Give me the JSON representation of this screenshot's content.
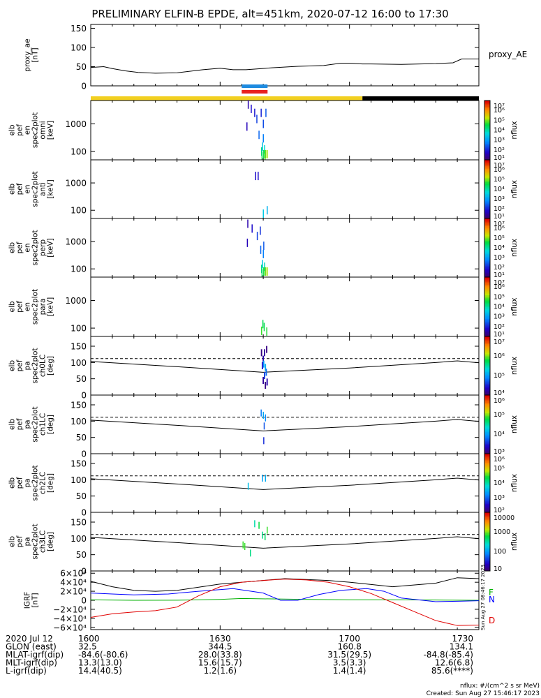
{
  "title": "PRELIMINARY ELFIN-B EPDE, alt=451km, 2020-07-12 16:00 to 17:30",
  "footer": {
    "units": "nflux: #/(cm^2 s sr MeV)",
    "created": "Created: Sun Aug 27 15:46:17 2023",
    "stamp": "Sun Aug 27 08:46:17 2023"
  },
  "time_axis": {
    "minutes": [
      0,
      30,
      60,
      90
    ],
    "range_minutes": [
      0,
      90
    ],
    "labels": [
      "1600",
      "1630",
      "1700",
      "1730"
    ]
  },
  "ephemeris": [
    {
      "label": "2020 Jul 12",
      "values": [
        "1600",
        "1630",
        "1700",
        "1730"
      ]
    },
    {
      "label": "GLON (east)",
      "values": [
        "32.5",
        "344.5",
        "160.8",
        "134.1"
      ]
    },
    {
      "label": "MLAT-igrf(dip)",
      "values": [
        "-84.6(-80.6)",
        "28.0(33.8)",
        "31.5(29.5)",
        "-84.8(-85.4)"
      ]
    },
    {
      "label": "MLT-igrf(dip)",
      "values": [
        "13.3(13.0)",
        "15.6(15.7)",
        "3.5(3.3)",
        "12.6(6.8)"
      ]
    },
    {
      "label": "L-igrf(dip)",
      "values": [
        "14.4(40.5)",
        "1.2(1.6)",
        "1.4(1.4)",
        "85.6(****)"
      ]
    }
  ],
  "chart_data": [
    {
      "id": "proxy_ae",
      "type": "line",
      "ylabel": [
        "proxy_ae",
        "[nT]"
      ],
      "legend": "proxy_AE",
      "yticks": [
        "0",
        "50",
        "100",
        "150"
      ],
      "ylim": [
        0,
        160
      ],
      "x": [
        0,
        3,
        5,
        8,
        11,
        15,
        20,
        26,
        30,
        33,
        36,
        42,
        48,
        54,
        58,
        60,
        63,
        65,
        72,
        80,
        84,
        86,
        90
      ],
      "y": [
        48,
        50,
        45,
        39,
        35,
        33,
        34,
        42,
        46,
        42,
        42,
        47,
        51,
        53,
        59,
        59,
        57,
        57,
        56,
        58,
        60,
        70,
        70
      ]
    },
    {
      "id": "status_bar",
      "type": "bar",
      "segments": [
        {
          "start": 0,
          "end": 63,
          "color": "#f2d020"
        },
        {
          "start": 63,
          "end": 90,
          "color": "#000000"
        }
      ],
      "markers": [
        {
          "start": 35,
          "end": 41,
          "color": "#1e8be0"
        },
        {
          "start": 35,
          "end": 41,
          "color": "#e8201f"
        }
      ]
    },
    {
      "id": "omni",
      "type": "heatmap",
      "ylabel": [
        "elb",
        "pef",
        "en",
        "spec2plot",
        "omni",
        "[keV]"
      ],
      "yticks": [
        "100",
        "1000"
      ],
      "yscale": "log",
      "ylim": [
        50,
        7000
      ],
      "cbar_label": "nflux",
      "cbar_ticks": [
        "10¹",
        "10²",
        "10³",
        "10⁴",
        "10⁵",
        "10⁶",
        "10⁷"
      ],
      "cbar_range": [
        1,
        7
      ],
      "cells": [
        [
          36.5,
          5000,
          0.2,
          1.5
        ],
        [
          36.2,
          800,
          0.2,
          1.6
        ],
        [
          37.2,
          3500,
          0.2,
          1.8
        ],
        [
          38.0,
          2500,
          0.2,
          1.9
        ],
        [
          39.5,
          2500,
          0.2,
          2.0
        ],
        [
          38.5,
          1500,
          0.2,
          2.2
        ],
        [
          40.0,
          1000,
          0.2,
          2.3
        ],
        [
          40.6,
          2500,
          0.2,
          2.4
        ],
        [
          39.0,
          400,
          0.2,
          2.5
        ],
        [
          40.0,
          300,
          0.2,
          2.7
        ],
        [
          39.8,
          150,
          0.2,
          3.4
        ],
        [
          40.3,
          120,
          0.2,
          3.8
        ],
        [
          39.6,
          100,
          0.2,
          4.2
        ],
        [
          40.1,
          80,
          0.2,
          4.6
        ],
        [
          40.5,
          80,
          0.3,
          5.0
        ],
        [
          40.9,
          80,
          0.3,
          5.2
        ],
        [
          39.7,
          70,
          0.2,
          4.5
        ],
        [
          40.4,
          70,
          0.2,
          4.9
        ]
      ]
    },
    {
      "id": "anti",
      "type": "heatmap",
      "ylabel": [
        "elb",
        "pef",
        "en",
        "spec2plot",
        "anti",
        "[keV]"
      ],
      "yticks": [
        "100",
        "1000"
      ],
      "yscale": "log",
      "ylim": [
        50,
        7000
      ],
      "cbar_label": "nflux",
      "cbar_ticks": [
        "10¹",
        "10²",
        "10³",
        "10⁴",
        "10⁵",
        "10⁶",
        "10⁷"
      ],
      "cbar_range": [
        1,
        7
      ],
      "cells": [
        [
          38.2,
          1800,
          0.2,
          1.8
        ],
        [
          38.8,
          1800,
          0.2,
          1.8
        ],
        [
          40.0,
          75,
          0.2,
          3.5
        ],
        [
          40.9,
          100,
          0.2,
          3.2
        ]
      ]
    },
    {
      "id": "perp",
      "type": "heatmap",
      "ylabel": [
        "elb",
        "pef",
        "en",
        "spec2plot",
        "perp",
        "[keV]"
      ],
      "yticks": [
        "100",
        "1000"
      ],
      "yscale": "log",
      "ylim": [
        50,
        7000
      ],
      "cbar_label": "nflux",
      "cbar_ticks": [
        "10¹",
        "10²",
        "10³",
        "10⁴",
        "10⁵",
        "10⁶",
        "10⁷"
      ],
      "cbar_range": [
        1,
        7
      ],
      "cells": [
        [
          36.4,
          4500,
          0.2,
          1.5
        ],
        [
          36.3,
          900,
          0.2,
          1.6
        ],
        [
          37.4,
          3000,
          0.2,
          1.8
        ],
        [
          39.3,
          2500,
          0.2,
          2.1
        ],
        [
          38.6,
          1600,
          0.2,
          2.2
        ],
        [
          40.1,
          700,
          0.2,
          2.4
        ],
        [
          39.4,
          500,
          0.2,
          2.5
        ],
        [
          40.0,
          350,
          0.2,
          2.7
        ],
        [
          39.8,
          150,
          0.2,
          3.5
        ],
        [
          40.3,
          120,
          0.2,
          3.9
        ],
        [
          39.6,
          100,
          0.2,
          4.2
        ],
        [
          40.1,
          80,
          0.2,
          4.6
        ],
        [
          40.5,
          80,
          0.3,
          5.0
        ],
        [
          40.9,
          80,
          0.3,
          5.2
        ],
        [
          39.7,
          70,
          0.2,
          4.5
        ]
      ]
    },
    {
      "id": "para",
      "type": "heatmap",
      "ylabel": [
        "elb",
        "pef",
        "en",
        "spec2plot",
        "para",
        "[keV]"
      ],
      "yticks": [
        "100",
        "1000"
      ],
      "yscale": "log",
      "ylim": [
        50,
        7000
      ],
      "cbar_label": "nflux",
      "cbar_ticks": [
        "10¹",
        "10²",
        "10³",
        "10⁴",
        "10⁵",
        "10⁶",
        "10⁷"
      ],
      "cbar_range": [
        1,
        7
      ],
      "cells": [
        [
          39.9,
          140,
          0.2,
          4.5
        ],
        [
          40.2,
          110,
          0.2,
          4.5
        ],
        [
          39.6,
          80,
          0.2,
          4.8
        ],
        [
          40.8,
          75,
          0.2,
          4.7
        ]
      ]
    },
    {
      "id": "ch0LC",
      "type": "heatmap",
      "ylabel": [
        "elb",
        "pef",
        "pa",
        "spec2plot",
        "ch0LC",
        "[deg]"
      ],
      "yticks": [
        "0",
        "50",
        "100",
        "150"
      ],
      "yscale": "linear",
      "ylim": [
        0,
        180
      ],
      "cbar_label": "nflux",
      "cbar_ticks": [
        "10⁴",
        "10⁵",
        "10⁶",
        "10⁷"
      ],
      "cbar_range": [
        3.5,
        7
      ],
      "lc_line": [
        [
          0,
          103
        ],
        [
          20,
          87
        ],
        [
          40,
          70
        ],
        [
          60,
          83
        ],
        [
          80,
          100
        ],
        [
          85,
          105
        ],
        [
          90,
          99
        ]
      ],
      "dashed": 112,
      "cells": [
        [
          39.6,
          130,
          0.3,
          3.6
        ],
        [
          40.0,
          110,
          0.3,
          3.8
        ],
        [
          40.3,
          130,
          0.3,
          3.7
        ],
        [
          40.8,
          140,
          0.3,
          3.6
        ],
        [
          40.1,
          95,
          0.3,
          4.6
        ],
        [
          40.5,
          85,
          0.3,
          4.8
        ],
        [
          40.7,
          70,
          0.3,
          4.4
        ],
        [
          40.3,
          60,
          0.3,
          4.2
        ],
        [
          40.9,
          40,
          0.3,
          3.8
        ],
        [
          40.5,
          30,
          0.3,
          3.6
        ],
        [
          39.8,
          90,
          0.3,
          4.0
        ],
        [
          40.0,
          45,
          0.3,
          3.7
        ]
      ]
    },
    {
      "id": "ch1LC",
      "type": "heatmap",
      "ylabel": [
        "elb",
        "pef",
        "pa",
        "spec2plot",
        "ch1LC",
        "[deg]"
      ],
      "yticks": [
        "0",
        "50",
        "100",
        "150"
      ],
      "yscale": "linear",
      "ylim": [
        0,
        180
      ],
      "cbar_label": "nflux",
      "cbar_ticks": [
        "10³",
        "10⁴",
        "10⁵",
        "10⁶"
      ],
      "cbar_range": [
        2.5,
        6.5
      ],
      "lc_line": [
        [
          0,
          103
        ],
        [
          20,
          87
        ],
        [
          40,
          70
        ],
        [
          60,
          83
        ],
        [
          80,
          100
        ],
        [
          85,
          105
        ],
        [
          90,
          99
        ]
      ],
      "dashed": 112,
      "cells": [
        [
          39.5,
          125,
          0.2,
          3.6
        ],
        [
          40.0,
          118,
          0.2,
          3.9
        ],
        [
          40.5,
          110,
          0.2,
          3.7
        ],
        [
          40.2,
          85,
          0.2,
          3.4
        ],
        [
          40.1,
          40,
          0.2,
          3.2
        ]
      ]
    },
    {
      "id": "ch2LC",
      "type": "heatmap",
      "ylabel": [
        "elb",
        "pef",
        "pa",
        "spec2plot",
        "ch2LC",
        "[deg]"
      ],
      "yticks": [
        "0",
        "50",
        "100",
        "150"
      ],
      "yscale": "linear",
      "ylim": [
        0,
        180
      ],
      "cbar_label": "nflux",
      "cbar_ticks": [
        "10²",
        "10³",
        "10⁴",
        "10⁵",
        "10⁶"
      ],
      "cbar_range": [
        1.5,
        6.5
      ],
      "lc_line": [
        [
          0,
          103
        ],
        [
          20,
          87
        ],
        [
          40,
          70
        ],
        [
          60,
          83
        ],
        [
          80,
          100
        ],
        [
          85,
          105
        ],
        [
          90,
          99
        ]
      ],
      "dashed": 112,
      "cells": [
        [
          36.5,
          80,
          0.2,
          3.5
        ],
        [
          39.8,
          105,
          0.2,
          3.2
        ],
        [
          40.5,
          105,
          0.2,
          3.3
        ]
      ]
    },
    {
      "id": "ch3LC",
      "type": "heatmap",
      "ylabel": [
        "elb",
        "pef",
        "pa",
        "spec2plot",
        "ch3LC",
        "[deg]"
      ],
      "yticks": [
        "0",
        "50",
        "100",
        "150"
      ],
      "yscale": "linear",
      "ylim": [
        0,
        180
      ],
      "cbar_label": "nflux",
      "cbar_ticks": [
        "10",
        "100",
        "1000",
        "10000"
      ],
      "cbar_range": [
        1,
        4
      ],
      "lc_line": [
        [
          0,
          103
        ],
        [
          20,
          87
        ],
        [
          40,
          70
        ],
        [
          60,
          83
        ],
        [
          80,
          100
        ],
        [
          85,
          105
        ],
        [
          90,
          99
        ]
      ],
      "dashed": 112,
      "cells": [
        [
          38.0,
          145,
          0.2,
          2.5
        ],
        [
          39.0,
          140,
          0.2,
          2.8
        ],
        [
          40.9,
          125,
          0.2,
          2.9
        ],
        [
          39.8,
          110,
          0.2,
          2.6
        ],
        [
          40.4,
          105,
          0.2,
          2.7
        ],
        [
          35.3,
          80,
          0.2,
          2.9
        ],
        [
          35.7,
          75,
          0.2,
          2.9
        ],
        [
          37.0,
          55,
          0.2,
          2.6
        ]
      ]
    },
    {
      "id": "igrf",
      "type": "line",
      "ylabel": [
        "IGRF",
        "[nT]"
      ],
      "yticks": [
        "6×10⁴",
        "4×10⁴",
        "2×10⁴",
        "0",
        "−2×10⁴",
        "−4×10⁴",
        "−6×10⁴"
      ],
      "ytick_values": [
        60000,
        40000,
        20000,
        0,
        -20000,
        -40000,
        -60000
      ],
      "ylim": [
        -65000,
        65000
      ],
      "series": [
        {
          "name": "F",
          "color": "#00b000",
          "x": [
            0,
            10,
            20,
            25,
            30,
            35,
            42,
            50,
            60,
            70,
            80,
            90
          ],
          "y": [
            1000,
            0,
            200,
            1000,
            2000,
            4000,
            3000,
            2000,
            1000,
            1000,
            500,
            0
          ]
        },
        {
          "name": "N",
          "color": "#0000ff",
          "x": [
            0,
            5,
            10,
            18,
            25,
            33,
            40,
            44,
            48,
            53,
            58,
            64,
            68,
            72,
            80,
            86,
            90
          ],
          "y": [
            16000,
            14000,
            12000,
            14000,
            20000,
            26000,
            16000,
            0,
            0,
            13000,
            22000,
            26000,
            20000,
            5000,
            -3000,
            -2000,
            -1000
          ]
        },
        {
          "name": "",
          "color": "#000000",
          "x": [
            0,
            5,
            10,
            15,
            20,
            30,
            40,
            45,
            50,
            55,
            60,
            70,
            80,
            85,
            90
          ],
          "y": [
            42000,
            30000,
            22000,
            20000,
            22000,
            36000,
            44000,
            48000,
            46000,
            44000,
            40000,
            30000,
            38000,
            50000,
            48000
          ]
        },
        {
          "name": "D",
          "color": "#e00000",
          "x": [
            0,
            5,
            10,
            15,
            20,
            25,
            30,
            35,
            40,
            45,
            50,
            55,
            60,
            65,
            70,
            75,
            80,
            85,
            90
          ],
          "y": [
            -38000,
            -30000,
            -26000,
            -23000,
            -15000,
            10000,
            30000,
            40000,
            44000,
            47000,
            45000,
            40000,
            30000,
            15000,
            -5000,
            -25000,
            -45000,
            -56000,
            -55000
          ]
        }
      ]
    }
  ]
}
